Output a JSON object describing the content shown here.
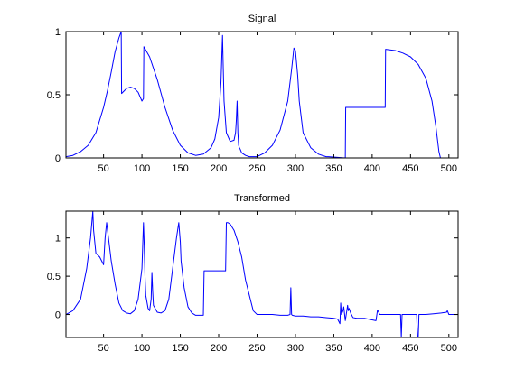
{
  "chart_data": [
    {
      "type": "line",
      "title": "Signal",
      "xlabel": "",
      "ylabel": "",
      "xlim": [
        1,
        512
      ],
      "ylim": [
        0,
        1
      ],
      "xticks": [
        "50",
        "100",
        "150",
        "200",
        "250",
        "300",
        "350",
        "400",
        "450",
        "500"
      ],
      "yticks": [
        "0",
        "0.5",
        "1"
      ],
      "grid": false,
      "series": [
        {
          "color": "#0000ff",
          "x": [
            1,
            10,
            20,
            30,
            40,
            50,
            55,
            60,
            65,
            70,
            73,
            73.5,
            80,
            85,
            90,
            95,
            100,
            102,
            102.5,
            110,
            120,
            130,
            140,
            150,
            160,
            170,
            180,
            190,
            195,
            200,
            203,
            205,
            206,
            207,
            210,
            215,
            220,
            222,
            223,
            224,
            225,
            226,
            227,
            228,
            230,
            235,
            240,
            250,
            260,
            270,
            280,
            290,
            295,
            298,
            300,
            303,
            305,
            310,
            320,
            330,
            340,
            343,
            365,
            365.5,
            417,
            417.5,
            430,
            440,
            450,
            460,
            470,
            478,
            483,
            487,
            489,
            512
          ],
          "y": [
            0.01,
            0.02,
            0.05,
            0.1,
            0.2,
            0.4,
            0.53,
            0.68,
            0.84,
            0.95,
            1.0,
            0.51,
            0.55,
            0.56,
            0.55,
            0.52,
            0.45,
            0.47,
            0.88,
            0.8,
            0.62,
            0.4,
            0.22,
            0.1,
            0.04,
            0.02,
            0.03,
            0.08,
            0.15,
            0.32,
            0.6,
            0.97,
            0.7,
            0.45,
            0.2,
            0.13,
            0.14,
            0.2,
            0.3,
            0.45,
            0.2,
            0.1,
            0.08,
            0.07,
            0.04,
            0.02,
            0.01,
            0.01,
            0.04,
            0.1,
            0.22,
            0.45,
            0.7,
            0.87,
            0.85,
            0.65,
            0.45,
            0.2,
            0.08,
            0.03,
            0.01,
            0.01,
            0.0,
            0.4,
            0.4,
            0.86,
            0.85,
            0.83,
            0.8,
            0.74,
            0.63,
            0.45,
            0.25,
            0.05,
            0.0,
            0.0
          ]
        }
      ]
    },
    {
      "type": "line",
      "title": "Transformed",
      "xlabel": "",
      "ylabel": "",
      "xlim": [
        1,
        512
      ],
      "ylim": [
        -0.3,
        1.35
      ],
      "xticks": [
        "50",
        "100",
        "150",
        "200",
        "250",
        "300",
        "350",
        "400",
        "450",
        "500"
      ],
      "yticks": [
        "0",
        "0.5",
        "1"
      ],
      "grid": false,
      "series": [
        {
          "color": "#0000ff",
          "x": [
            1,
            10,
            20,
            28,
            33,
            36,
            37,
            40,
            45,
            50,
            52,
            54,
            57,
            60,
            65,
            70,
            75,
            80,
            85,
            90,
            95,
            100,
            101,
            102,
            103,
            104,
            105,
            108,
            110,
            112,
            113,
            114,
            115,
            120,
            125,
            130,
            135,
            140,
            145,
            148,
            150,
            151,
            155,
            160,
            165,
            170,
            175,
            180,
            181,
            182,
            190,
            200,
            209,
            210,
            212,
            215,
            220,
            225,
            230,
            235,
            240,
            245,
            250,
            260,
            270,
            280,
            290,
            293,
            294,
            295,
            296,
            300,
            310,
            320,
            330,
            340,
            350,
            355,
            357,
            358,
            359,
            360,
            362,
            363,
            365,
            367,
            368,
            369,
            370,
            372,
            375,
            380,
            390,
            400,
            405,
            407,
            410,
            420,
            430,
            437,
            438,
            439,
            440,
            450,
            458,
            459,
            460,
            461,
            470,
            480,
            490,
            497,
            498,
            500,
            505,
            512
          ],
          "y": [
            0.0,
            0.05,
            0.2,
            0.6,
            1.0,
            1.35,
            1.1,
            0.8,
            0.75,
            0.65,
            1.0,
            1.2,
            0.95,
            0.7,
            0.4,
            0.15,
            0.05,
            0.02,
            0.01,
            0.05,
            0.2,
            0.6,
            0.9,
            1.2,
            0.9,
            0.5,
            0.25,
            0.08,
            0.05,
            0.2,
            0.55,
            0.3,
            0.12,
            0.03,
            0.02,
            0.05,
            0.2,
            0.6,
            1.0,
            1.2,
            0.95,
            0.7,
            0.35,
            0.1,
            0.02,
            -0.01,
            -0.01,
            -0.01,
            0.57,
            0.57,
            0.57,
            0.57,
            0.57,
            1.2,
            1.2,
            1.18,
            1.1,
            0.95,
            0.75,
            0.45,
            0.25,
            0.05,
            0.0,
            0.0,
            0.0,
            -0.01,
            -0.01,
            0.0,
            0.35,
            0.0,
            -0.01,
            -0.02,
            -0.02,
            -0.03,
            -0.03,
            -0.04,
            -0.05,
            -0.06,
            -0.1,
            -0.12,
            0.15,
            0.0,
            0.05,
            0.1,
            -0.08,
            0.05,
            0.12,
            0.05,
            0.08,
            0.02,
            -0.04,
            -0.05,
            -0.05,
            -0.07,
            -0.08,
            0.06,
            0.0,
            0.0,
            0.0,
            0.0,
            -0.3,
            0.0,
            0.0,
            0.0,
            0.0,
            -0.3,
            -0.32,
            0.0,
            0.0,
            0.01,
            0.02,
            0.03,
            0.05,
            0.0,
            0.0,
            0.0
          ]
        }
      ]
    }
  ]
}
